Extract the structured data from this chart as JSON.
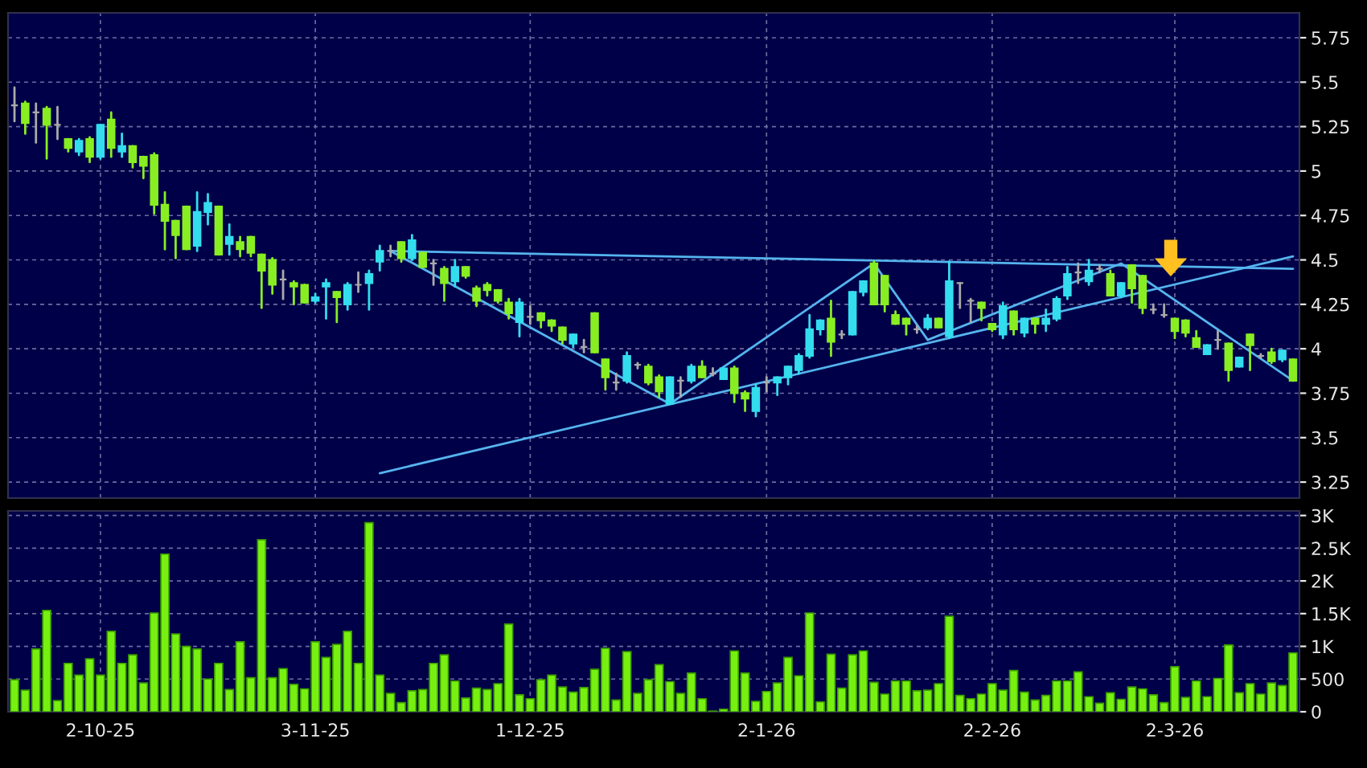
{
  "chart_data": [
    {
      "type": "candlestick",
      "categories": [
        null,
        null,
        null,
        null,
        null,
        null,
        null,
        null,
        null,
        null,
        null,
        null,
        null,
        null,
        null,
        null,
        null,
        null,
        null,
        null,
        null,
        null,
        null,
        null,
        null,
        null,
        null,
        null,
        null,
        null,
        null,
        null,
        null,
        null,
        null,
        null,
        null,
        null,
        null,
        null,
        null,
        null,
        null,
        null,
        null,
        null,
        null,
        null,
        null,
        null,
        null,
        null,
        null,
        null,
        null,
        null,
        null,
        null,
        null,
        null,
        null,
        null,
        null,
        null,
        null,
        null,
        null,
        null,
        null,
        null,
        null,
        null,
        null,
        null,
        null,
        null,
        null,
        null,
        null,
        null,
        null,
        null,
        null,
        null,
        null,
        null,
        null,
        null,
        null,
        null,
        null,
        null,
        null,
        null,
        null,
        null,
        null,
        null,
        null,
        null,
        null,
        null,
        null,
        null,
        null,
        null,
        null,
        null,
        null,
        null,
        null,
        null,
        null,
        null,
        null,
        null,
        null,
        null,
        null,
        null
      ],
      "ohlc": [
        [
          5.37,
          5.47,
          5.28,
          5.37
        ],
        [
          5.38,
          5.39,
          5.21,
          5.27
        ],
        [
          5.33,
          5.38,
          5.16,
          5.33
        ],
        [
          5.35,
          5.36,
          5.07,
          5.26
        ],
        [
          5.26,
          5.36,
          5.18,
          5.26
        ],
        [
          5.18,
          5.18,
          5.11,
          5.13
        ],
        [
          5.11,
          5.18,
          5.09,
          5.17
        ],
        [
          5.18,
          5.19,
          5.05,
          5.08
        ],
        [
          5.08,
          5.26,
          5.07,
          5.26
        ],
        [
          5.29,
          5.33,
          5.08,
          5.13
        ],
        [
          5.11,
          5.21,
          5.08,
          5.14
        ],
        [
          5.14,
          5.14,
          5.02,
          5.05
        ],
        [
          5.08,
          5.08,
          4.96,
          5.03
        ],
        [
          5.09,
          5.1,
          4.76,
          4.81
        ],
        [
          4.81,
          4.88,
          4.56,
          4.72
        ],
        [
          4.72,
          4.72,
          4.51,
          4.64
        ],
        [
          4.8,
          4.8,
          4.56,
          4.56
        ],
        [
          4.58,
          4.88,
          4.55,
          4.77
        ],
        [
          4.77,
          4.87,
          4.7,
          4.82
        ],
        [
          4.8,
          4.8,
          4.53,
          4.53
        ],
        [
          4.59,
          4.7,
          4.53,
          4.63
        ],
        [
          4.6,
          4.63,
          4.52,
          4.56
        ],
        [
          4.63,
          4.63,
          4.52,
          4.54
        ],
        [
          4.53,
          4.53,
          4.23,
          4.44
        ],
        [
          4.5,
          4.51,
          4.31,
          4.36
        ],
        [
          4.39,
          4.44,
          4.28,
          4.39
        ],
        [
          4.37,
          4.38,
          4.25,
          4.35
        ],
        [
          4.36,
          4.36,
          4.26,
          4.26
        ],
        [
          4.27,
          4.31,
          4.26,
          4.29
        ],
        [
          4.35,
          4.39,
          4.17,
          4.37
        ],
        [
          4.32,
          4.32,
          4.15,
          4.29
        ],
        [
          4.25,
          4.37,
          4.22,
          4.36
        ],
        [
          4.36,
          4.43,
          4.32,
          4.36
        ],
        [
          4.37,
          4.44,
          4.22,
          4.42
        ],
        [
          4.49,
          4.58,
          4.44,
          4.55
        ],
        [
          4.55,
          4.58,
          4.52,
          4.55
        ],
        [
          4.6,
          4.6,
          4.49,
          4.51
        ],
        [
          4.51,
          4.64,
          4.5,
          4.61
        ],
        [
          4.54,
          4.54,
          4.46,
          4.46
        ],
        [
          4.48,
          4.5,
          4.36,
          4.48
        ],
        [
          4.45,
          4.46,
          4.27,
          4.37
        ],
        [
          4.38,
          4.5,
          4.35,
          4.46
        ],
        [
          4.46,
          4.46,
          4.4,
          4.41
        ],
        [
          4.34,
          4.35,
          4.24,
          4.27
        ],
        [
          4.36,
          4.37,
          4.3,
          4.33
        ],
        [
          4.33,
          4.33,
          4.26,
          4.27
        ],
        [
          4.26,
          4.28,
          4.17,
          4.2
        ],
        [
          4.15,
          4.28,
          4.07,
          4.26
        ],
        [
          4.18,
          4.24,
          4.14,
          4.18
        ],
        [
          4.2,
          4.2,
          4.12,
          4.16
        ],
        [
          4.16,
          4.16,
          4.1,
          4.13
        ],
        [
          4.12,
          4.12,
          4.03,
          4.05
        ],
        [
          4.03,
          4.08,
          4.01,
          4.08
        ],
        [
          4.01,
          4.05,
          3.98,
          4.01
        ],
        [
          4.2,
          4.2,
          3.98,
          3.98
        ],
        [
          3.94,
          3.94,
          3.77,
          3.84
        ],
        [
          3.81,
          3.86,
          3.77,
          3.81
        ],
        [
          3.82,
          3.98,
          3.81,
          3.96
        ],
        [
          3.91,
          3.92,
          3.89,
          3.91
        ],
        [
          3.9,
          3.91,
          3.8,
          3.81
        ],
        [
          3.84,
          3.85,
          3.73,
          3.76
        ],
        [
          3.69,
          3.84,
          3.69,
          3.84
        ],
        [
          3.82,
          3.84,
          3.73,
          3.82
        ],
        [
          3.82,
          3.91,
          3.81,
          3.9
        ],
        [
          3.9,
          3.93,
          3.84,
          3.84
        ],
        [
          3.86,
          3.89,
          3.85,
          3.86
        ],
        [
          3.83,
          3.89,
          3.83,
          3.89
        ],
        [
          3.89,
          3.9,
          3.7,
          3.75
        ],
        [
          3.75,
          3.76,
          3.65,
          3.72
        ],
        [
          3.65,
          3.8,
          3.62,
          3.78
        ],
        [
          3.81,
          3.84,
          3.76,
          3.81
        ],
        [
          3.81,
          3.84,
          3.74,
          3.84
        ],
        [
          3.84,
          3.9,
          3.8,
          3.9
        ],
        [
          3.88,
          3.97,
          3.86,
          3.96
        ],
        [
          3.96,
          4.19,
          3.95,
          4.11
        ],
        [
          4.11,
          4.16,
          4.08,
          4.16
        ],
        [
          4.17,
          4.27,
          3.96,
          4.04
        ],
        [
          4.08,
          4.1,
          4.06,
          4.08
        ],
        [
          4.08,
          4.32,
          4.08,
          4.32
        ],
        [
          4.32,
          4.38,
          4.3,
          4.38
        ],
        [
          4.48,
          4.49,
          4.25,
          4.25
        ],
        [
          4.41,
          4.41,
          4.21,
          4.25
        ],
        [
          4.19,
          4.21,
          4.14,
          4.14
        ],
        [
          4.17,
          4.17,
          4.08,
          4.14
        ],
        [
          4.11,
          4.13,
          4.09,
          4.11
        ],
        [
          4.12,
          4.19,
          4.11,
          4.17
        ],
        [
          4.17,
          4.17,
          4.12,
          4.12
        ],
        [
          4.07,
          4.49,
          4.06,
          4.38
        ],
        [
          4.37,
          4.37,
          4.23,
          4.37
        ],
        [
          4.27,
          4.28,
          4.15,
          4.27
        ],
        [
          4.26,
          4.26,
          4.16,
          4.23
        ],
        [
          4.14,
          4.14,
          4.1,
          4.11
        ],
        [
          4.08,
          4.26,
          4.06,
          4.24
        ],
        [
          4.21,
          4.21,
          4.08,
          4.11
        ],
        [
          4.09,
          4.17,
          4.07,
          4.17
        ],
        [
          4.17,
          4.17,
          4.09,
          4.14
        ],
        [
          4.14,
          4.22,
          4.1,
          4.17
        ],
        [
          4.17,
          4.29,
          4.16,
          4.28
        ],
        [
          4.3,
          4.46,
          4.28,
          4.42
        ],
        [
          4.43,
          4.48,
          4.37,
          4.43
        ],
        [
          4.38,
          4.5,
          4.36,
          4.44
        ],
        [
          4.45,
          4.47,
          4.43,
          4.45
        ],
        [
          4.42,
          4.44,
          4.3,
          4.3
        ],
        [
          4.3,
          4.37,
          4.29,
          4.37
        ],
        [
          4.47,
          4.47,
          4.26,
          4.34
        ],
        [
          4.41,
          4.41,
          4.2,
          4.23
        ],
        [
          4.22,
          4.25,
          4.2,
          4.22
        ],
        [
          4.19,
          4.25,
          4.18,
          4.19
        ],
        [
          4.17,
          4.17,
          4.06,
          4.1
        ],
        [
          4.16,
          4.16,
          4.07,
          4.09
        ],
        [
          4.06,
          4.1,
          4.01,
          4.01
        ],
        [
          3.97,
          4.02,
          3.97,
          4.02
        ],
        [
          4.05,
          4.1,
          4.0,
          4.05
        ],
        [
          4.03,
          4.03,
          3.82,
          3.88
        ],
        [
          3.9,
          3.95,
          3.9,
          3.95
        ],
        [
          4.08,
          4.08,
          3.88,
          4.02
        ],
        [
          3.96,
          3.97,
          3.95,
          3.96
        ],
        [
          3.98,
          4.0,
          3.92,
          3.93
        ],
        [
          3.94,
          3.99,
          3.93,
          3.99
        ],
        [
          3.94,
          3.94,
          3.82,
          3.82
        ]
      ],
      "colors": [
        "#aaaaaa",
        "#88ee22",
        "#aaaaaa",
        "#88ee22",
        "#aaaaaa",
        "#88ee22",
        "#33ddee",
        "#88ee22",
        "#33ddee",
        "#88ee22",
        "#33ddee",
        "#88ee22",
        "#88ee22",
        "#88ee22",
        "#88ee22",
        "#88ee22",
        "#88ee22",
        "#33ddee",
        "#33ddee",
        "#88ee22",
        "#33ddee",
        "#88ee22",
        "#88ee22",
        "#88ee22",
        "#88ee22",
        "#aaaaaa",
        "#88ee22",
        "#88ee22",
        "#33ddee",
        "#33ddee",
        "#88ee22",
        "#33ddee",
        "#aaaaaa",
        "#33ddee",
        "#33ddee",
        "#aaaaaa",
        "#88ee22",
        "#33ddee",
        "#88ee22",
        "#aaaaaa",
        "#88ee22",
        "#33ddee",
        "#88ee22",
        "#88ee22",
        "#88ee22",
        "#88ee22",
        "#88ee22",
        "#33ddee",
        "#aaaaaa",
        "#88ee22",
        "#88ee22",
        "#88ee22",
        "#33ddee",
        "#aaaaaa",
        "#88ee22",
        "#88ee22",
        "#aaaaaa",
        "#33ddee",
        "#aaaaaa",
        "#88ee22",
        "#88ee22",
        "#33ddee",
        "#aaaaaa",
        "#33ddee",
        "#88ee22",
        "#aaaaaa",
        "#33ddee",
        "#88ee22",
        "#88ee22",
        "#33ddee",
        "#aaaaaa",
        "#33ddee",
        "#33ddee",
        "#33ddee",
        "#33ddee",
        "#33ddee",
        "#88ee22",
        "#aaaaaa",
        "#33ddee",
        "#33ddee",
        "#88ee22",
        "#88ee22",
        "#88ee22",
        "#88ee22",
        "#aaaaaa",
        "#33ddee",
        "#88ee22",
        "#33ddee",
        "#aaaaaa",
        "#aaaaaa",
        "#88ee22",
        "#88ee22",
        "#33ddee",
        "#88ee22",
        "#33ddee",
        "#88ee22",
        "#33ddee",
        "#33ddee",
        "#33ddee",
        "#aaaaaa",
        "#33ddee",
        "#aaaaaa",
        "#88ee22",
        "#33ddee",
        "#88ee22",
        "#88ee22",
        "#aaaaaa",
        "#aaaaaa",
        "#88ee22",
        "#88ee22",
        "#88ee22",
        "#33ddee",
        "#aaaaaa",
        "#88ee22",
        "#33ddee",
        "#88ee22",
        "#aaaaaa",
        "#88ee22",
        "#33ddee",
        "#88ee22"
      ],
      "series": [
        {
          "type": "line",
          "color": "#55b4ee",
          "values": [
            null,
            null,
            null,
            null,
            null,
            null,
            null,
            null,
            null,
            null,
            null,
            null,
            null,
            null,
            null,
            null,
            null,
            null,
            null,
            null,
            null,
            null,
            null,
            null,
            null,
            null,
            null,
            null,
            null,
            null,
            null,
            null,
            null,
            null,
            null,
            4.55,
            null,
            null,
            null,
            null,
            null,
            null,
            null,
            null,
            null,
            null,
            null,
            null,
            null,
            null,
            null,
            null,
            null,
            null,
            null,
            null,
            null,
            null,
            null,
            null,
            null,
            null,
            null,
            null,
            null,
            null,
            null,
            null,
            null,
            null,
            null,
            null,
            null,
            null,
            null,
            null,
            null,
            null,
            null,
            null,
            null,
            null,
            null,
            null,
            null,
            null,
            null,
            null,
            null,
            null,
            null,
            null,
            null,
            null,
            null,
            null,
            null,
            null,
            null,
            null,
            null,
            null,
            null,
            null,
            null,
            null,
            null,
            null,
            null,
            null,
            null,
            null,
            null,
            null,
            null,
            null,
            null,
            null,
            null,
            4.45
          ]
        },
        {
          "type": "line",
          "color": "#55b4ee",
          "values": [
            null,
            null,
            null,
            null,
            null,
            null,
            null,
            null,
            null,
            null,
            null,
            null,
            null,
            null,
            null,
            null,
            null,
            null,
            null,
            null,
            null,
            null,
            null,
            null,
            null,
            null,
            null,
            null,
            null,
            null,
            null,
            null,
            null,
            null,
            3.3,
            null,
            null,
            null,
            null,
            null,
            null,
            null,
            null,
            null,
            null,
            null,
            null,
            null,
            null,
            null,
            null,
            null,
            null,
            null,
            null,
            null,
            null,
            null,
            null,
            null,
            null,
            null,
            null,
            null,
            null,
            null,
            null,
            null,
            null,
            null,
            null,
            null,
            null,
            null,
            null,
            null,
            null,
            null,
            null,
            null,
            null,
            null,
            null,
            null,
            null,
            null,
            null,
            null,
            null,
            null,
            null,
            null,
            null,
            null,
            null,
            null,
            null,
            null,
            null,
            null,
            null,
            null,
            null,
            null,
            null,
            null,
            null,
            null,
            null,
            null,
            null,
            null,
            null,
            null,
            null,
            null,
            null,
            null,
            null,
            4.52
          ]
        },
        {
          "type": "line",
          "color": "#55b4ee",
          "values": [
            null,
            null,
            null,
            null,
            null,
            null,
            null,
            null,
            null,
            null,
            null,
            null,
            null,
            null,
            null,
            null,
            null,
            null,
            null,
            null,
            null,
            null,
            null,
            null,
            null,
            null,
            null,
            null,
            null,
            null,
            null,
            null,
            null,
            null,
            null,
            4.55,
            null,
            null,
            null,
            null,
            null,
            null,
            null,
            null,
            null,
            null,
            null,
            null,
            null,
            null,
            null,
            null,
            null,
            null,
            null,
            null,
            null,
            null,
            null,
            null,
            null,
            3.69,
            null,
            null,
            null,
            null,
            null,
            null,
            null,
            null,
            null,
            null,
            null,
            null,
            null,
            null,
            null,
            null,
            null,
            null,
            4.48,
            null,
            null,
            null,
            null,
            4.05,
            null,
            null,
            null,
            null,
            null,
            null,
            null,
            null,
            null,
            null,
            null,
            null,
            null,
            null,
            null,
            null,
            null,
            4.48,
            null,
            null,
            null,
            null,
            null,
            null,
            null,
            null,
            null,
            null,
            null,
            null,
            null,
            null,
            null,
            3.82
          ]
        }
      ],
      "ylim": [
        3.16,
        5.89
      ],
      "yticks": [
        3.25,
        3.5,
        3.75,
        4,
        4.25,
        4.5,
        4.75,
        5,
        5.25,
        5.5,
        5.75
      ],
      "grid": true,
      "tick_labels": "y"
    },
    {
      "type": "bar",
      "categories": [
        null,
        null,
        null,
        null,
        null,
        null,
        null,
        null,
        "2-10-25",
        null,
        null,
        null,
        null,
        null,
        null,
        null,
        null,
        null,
        null,
        null,
        null,
        null,
        null,
        null,
        null,
        null,
        null,
        null,
        "3-11-25",
        null,
        null,
        null,
        null,
        null,
        null,
        null,
        null,
        null,
        null,
        null,
        null,
        null,
        null,
        null,
        null,
        null,
        null,
        null,
        "1-12-25",
        null,
        null,
        null,
        null,
        null,
        null,
        null,
        null,
        null,
        null,
        null,
        null,
        null,
        null,
        null,
        null,
        null,
        null,
        null,
        null,
        null,
        "2-1-26",
        null,
        null,
        null,
        null,
        null,
        null,
        null,
        null,
        null,
        null,
        null,
        null,
        null,
        null,
        null,
        null,
        null,
        null,
        null,
        null,
        "2-2-26",
        null,
        null,
        null,
        null,
        null,
        null,
        null,
        null,
        null,
        null,
        null,
        null,
        null,
        null,
        null,
        null,
        "2-3-26",
        null,
        null,
        null,
        null,
        null,
        null,
        null,
        null,
        null,
        null,
        null
      ],
      "values": [
        490,
        330,
        960,
        1550,
        170,
        740,
        560,
        810,
        560,
        1230,
        740,
        870,
        440,
        1510,
        2410,
        1190,
        1000,
        960,
        500,
        740,
        340,
        1070,
        520,
        2630,
        520,
        660,
        420,
        350,
        1070,
        830,
        1030,
        1230,
        740,
        2890,
        560,
        280,
        140,
        320,
        340,
        740,
        870,
        470,
        210,
        360,
        340,
        430,
        1340,
        260,
        200,
        490,
        560,
        380,
        300,
        370,
        650,
        970,
        180,
        920,
        280,
        490,
        720,
        460,
        280,
        590,
        200,
        10,
        40,
        930,
        590,
        160,
        310,
        440,
        830,
        550,
        1510,
        150,
        880,
        360,
        870,
        930,
        450,
        270,
        470,
        470,
        320,
        330,
        430,
        1460,
        250,
        200,
        270,
        430,
        330,
        630,
        300,
        180,
        250,
        470,
        470,
        610,
        230,
        130,
        290,
        190,
        380,
        350,
        260,
        140,
        690,
        220,
        470,
        230,
        510,
        1020,
        290,
        430,
        270,
        440,
        400,
        900
      ],
      "color": "#77f011",
      "ylim": [
        0,
        3070
      ],
      "yticks": [
        0,
        500,
        {
          "value": 1000,
          "label": "1K"
        },
        {
          "value": 1500,
          "label": "1.5K"
        },
        {
          "value": 2000,
          "label": "2K"
        },
        {
          "value": 2500,
          "label": "2.5K"
        },
        {
          "value": 3000,
          "label": "3K"
        }
      ],
      "grid": true
    }
  ]
}
